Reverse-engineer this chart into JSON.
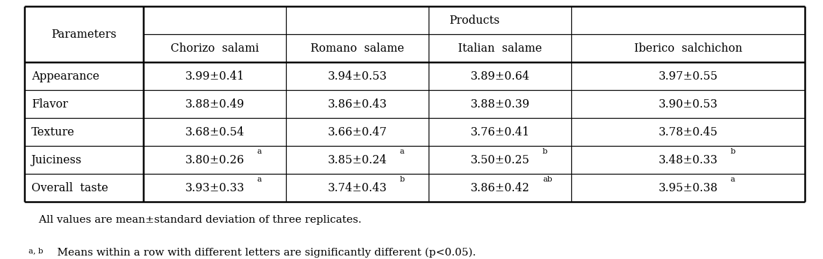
{
  "header_top": "Products",
  "col_headers": [
    "Parameters",
    "Chorizo  salami",
    "Romano  salame",
    "Italian  salame",
    "Iberico  salchichon"
  ],
  "row_labels": [
    "Appearance",
    "Flavor",
    "Texture",
    "Juiciness",
    "Overall  taste"
  ],
  "cell_data": [
    [
      "3.99±0.41",
      "3.94±0.53",
      "3.89±0.64",
      "3.97±0.55"
    ],
    [
      "3.88±0.49",
      "3.86±0.43",
      "3.88±0.39",
      "3.90±0.53"
    ],
    [
      "3.68±0.54",
      "3.66±0.47",
      "3.76±0.41",
      "3.78±0.45"
    ],
    [
      "3.80±0.26",
      "3.85±0.24",
      "3.50±0.25",
      "3.48±0.33"
    ],
    [
      "3.93±0.33",
      "3.74±0.43",
      "3.86±0.42",
      "3.95±0.38"
    ]
  ],
  "superscripts": [
    [
      "",
      "",
      "",
      ""
    ],
    [
      "",
      "",
      "",
      ""
    ],
    [
      "",
      "",
      "",
      ""
    ],
    [
      "a",
      "a",
      "b",
      "b"
    ],
    [
      "a",
      "b",
      "ab",
      "a"
    ]
  ],
  "footnote1": "   All values are mean±standard deviation of three replicates.",
  "footnote2_super": "a, b",
  "footnote2_main": "  Means within a row with different letters are significantly different (p<0.05).",
  "bg_color": "#ffffff",
  "text_color": "#000000",
  "font_size": 11.5,
  "super_font_size": 8.0
}
